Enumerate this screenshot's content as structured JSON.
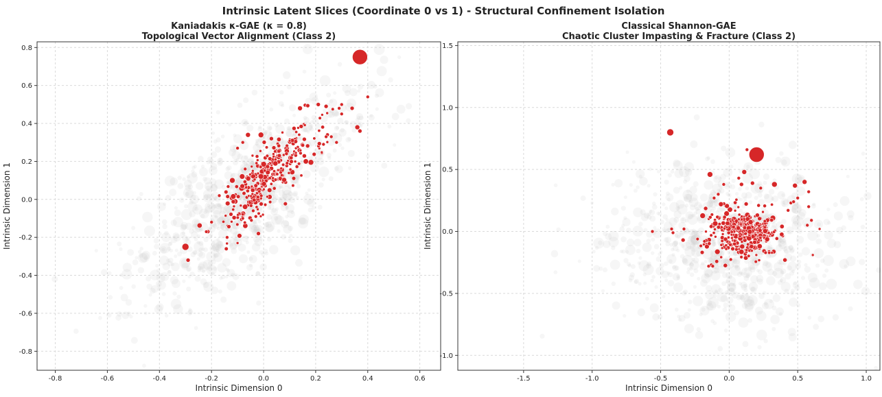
{
  "figure": {
    "suptitle": "Intrinsic Latent Slices (Coordinate 0 vs 1) - Structural Confinement Isolation"
  },
  "colors": {
    "class_point": "#d62728",
    "background_point": "#c8c8c8"
  },
  "chart_data": [
    {
      "type": "scatter",
      "title_line1": "Kaniadakis κ-GAE (κ = 0.8)",
      "title_line2": "Topological Vector Alignment (Class 2)",
      "xlabel": "Intrinsic Dimension 0",
      "ylabel": "Intrinsic Dimension 1",
      "xlim": [
        -0.87,
        0.68
      ],
      "ylim": [
        -0.9,
        0.83
      ],
      "xticks": [
        "-0.8",
        "-0.6",
        "-0.4",
        "-0.2",
        "0.0",
        "0.2",
        "0.4",
        "0.6"
      ],
      "yticks": [
        "-0.8",
        "-0.6",
        "-0.4",
        "-0.2",
        "0.0",
        "0.2",
        "0.4",
        "0.6",
        "0.8"
      ],
      "grid": true,
      "highlight_points": [
        {
          "x": 0.37,
          "y": 0.75,
          "s": 11
        },
        {
          "x": -0.3,
          "y": -0.25,
          "s": 5
        },
        {
          "x": -0.29,
          "y": -0.32,
          "s": 3
        },
        {
          "x": -0.01,
          "y": 0.34,
          "s": 4
        },
        {
          "x": -0.12,
          "y": 0.1,
          "s": 4
        },
        {
          "x": 0.34,
          "y": 0.48,
          "s": 3
        },
        {
          "x": 0.36,
          "y": 0.38,
          "s": 3.5
        },
        {
          "x": 0.37,
          "y": 0.36,
          "s": 3
        },
        {
          "x": 0.4,
          "y": 0.54,
          "s": 2.5
        },
        {
          "x": 0.14,
          "y": 0.48,
          "s": 3.5
        },
        {
          "x": 0.21,
          "y": 0.5,
          "s": 3
        },
        {
          "x": 0.24,
          "y": 0.49,
          "s": 3
        },
        {
          "x": 0.29,
          "y": 0.48,
          "s": 2.5
        },
        {
          "x": 0.3,
          "y": 0.5,
          "s": 2.5
        },
        {
          "x": 0.3,
          "y": 0.45,
          "s": 2.5
        },
        {
          "x": -0.06,
          "y": 0.34,
          "s": 3.5
        },
        {
          "x": 0.03,
          "y": 0.32,
          "s": 3
        },
        {
          "x": -0.02,
          "y": -0.18,
          "s": 3
        },
        {
          "x": -0.22,
          "y": -0.17,
          "s": 2.5
        },
        {
          "x": -0.2,
          "y": -0.12,
          "s": 2.5
        },
        {
          "x": -0.14,
          "y": -0.2,
          "s": 2.5
        },
        {
          "x": -0.1,
          "y": -0.23,
          "s": 2
        },
        {
          "x": -0.08,
          "y": -0.1,
          "s": 2.5
        },
        {
          "x": -0.17,
          "y": 0.02,
          "s": 2.5
        },
        {
          "x": -0.1,
          "y": 0.27,
          "s": 2.5
        },
        {
          "x": -0.08,
          "y": 0.3,
          "s": 2.5
        },
        {
          "x": -0.04,
          "y": -0.06,
          "s": 2.5
        },
        {
          "x": -0.03,
          "y": -0.09,
          "s": 2.5
        },
        {
          "x": 0.26,
          "y": 0.33,
          "s": 2.5
        },
        {
          "x": 0.28,
          "y": 0.3,
          "s": 2.5
        },
        {
          "x": 0.23,
          "y": 0.29,
          "s": 2.5
        },
        {
          "x": 0.24,
          "y": 0.33,
          "s": 2.5
        }
      ],
      "cluster": {
        "center": [
          0.03,
          0.14
        ],
        "dir": [
          0.55,
          0.83
        ],
        "along_sd": 0.16,
        "across_sd": 0.045,
        "n": 300,
        "seed": 11
      },
      "background": {
        "center": [
          -0.06,
          0.02
        ],
        "dir": [
          0.6,
          0.8
        ],
        "along_sd": 0.33,
        "across_sd": 0.13,
        "n": 850,
        "seed": 7
      }
    },
    {
      "type": "scatter",
      "title_line1": "Classical Shannon-GAE",
      "title_line2": "Chaotic Cluster Impasting & Fracture (Class 2)",
      "xlabel": "Intrinsic Dimension 0",
      "ylabel": "Intrinsic Dimension 1",
      "xlim": [
        -1.98,
        1.1
      ],
      "ylim": [
        -1.12,
        1.53
      ],
      "xticks": [
        "-1.5",
        "-1.0",
        "-0.5",
        "0.0",
        "0.5",
        "1.0"
      ],
      "yticks": [
        "-1.0",
        "-0.5",
        "0.0",
        "0.5",
        "1.0",
        "1.5"
      ],
      "grid": true,
      "highlight_points": [
        {
          "x": 0.2,
          "y": 0.62,
          "s": 11
        },
        {
          "x": -0.43,
          "y": 0.8,
          "s": 5
        },
        {
          "x": -0.14,
          "y": 0.46,
          "s": 4
        },
        {
          "x": 0.11,
          "y": 0.48,
          "s": 3.5
        },
        {
          "x": 0.33,
          "y": 0.38,
          "s": 4
        },
        {
          "x": 0.48,
          "y": 0.37,
          "s": 3.5
        },
        {
          "x": 0.55,
          "y": 0.4,
          "s": 3.5
        },
        {
          "x": 0.09,
          "y": 0.38,
          "s": 3
        },
        {
          "x": 0.17,
          "y": 0.39,
          "s": 3
        },
        {
          "x": 0.07,
          "y": 0.43,
          "s": 2.5
        },
        {
          "x": -0.04,
          "y": 0.38,
          "s": 2.5
        },
        {
          "x": -0.08,
          "y": 0.3,
          "s": 2.5
        },
        {
          "x": -0.11,
          "y": 0.27,
          "s": 2.5
        },
        {
          "x": -0.06,
          "y": 0.22,
          "s": 3.5
        },
        {
          "x": 0.23,
          "y": 0.35,
          "s": 2.5
        },
        {
          "x": 0.13,
          "y": 0.66,
          "s": 2.5
        },
        {
          "x": -0.56,
          "y": 0.0,
          "s": 2.5
        },
        {
          "x": -0.42,
          "y": 0.02,
          "s": 2.5
        },
        {
          "x": -0.41,
          "y": -0.01,
          "s": 2.5
        },
        {
          "x": -0.33,
          "y": 0.02,
          "s": 2.5
        },
        {
          "x": -0.18,
          "y": -0.08,
          "s": 2.5
        },
        {
          "x": -0.15,
          "y": -0.28,
          "s": 2.5
        },
        {
          "x": -0.12,
          "y": -0.28,
          "s": 2.5
        },
        {
          "x": 0.45,
          "y": 0.23,
          "s": 2.5
        },
        {
          "x": 0.47,
          "y": 0.24,
          "s": 2.5
        },
        {
          "x": 0.58,
          "y": 0.32,
          "s": 2.5
        },
        {
          "x": 0.5,
          "y": 0.27,
          "s": 2.5
        },
        {
          "x": 0.58,
          "y": 0.2,
          "s": 2.5
        },
        {
          "x": 0.6,
          "y": 0.09,
          "s": 2.5
        },
        {
          "x": 0.57,
          "y": 0.05,
          "s": 2.5
        },
        {
          "x": 0.66,
          "y": 0.02,
          "s": 2
        },
        {
          "x": 0.61,
          "y": -0.19,
          "s": 2
        },
        {
          "x": 0.43,
          "y": 0.17,
          "s": 2.5
        }
      ],
      "cluster": {
        "center": [
          0.1,
          -0.02
        ],
        "dir": [
          1,
          0
        ],
        "along_sd": 0.12,
        "across_sd": 0.1,
        "n": 330,
        "seed": 23
      },
      "background": {
        "center": [
          -0.05,
          -0.08
        ],
        "dir": [
          1,
          0
        ],
        "along_sd": 0.42,
        "across_sd": 0.33,
        "n": 800,
        "seed": 5
      }
    }
  ]
}
